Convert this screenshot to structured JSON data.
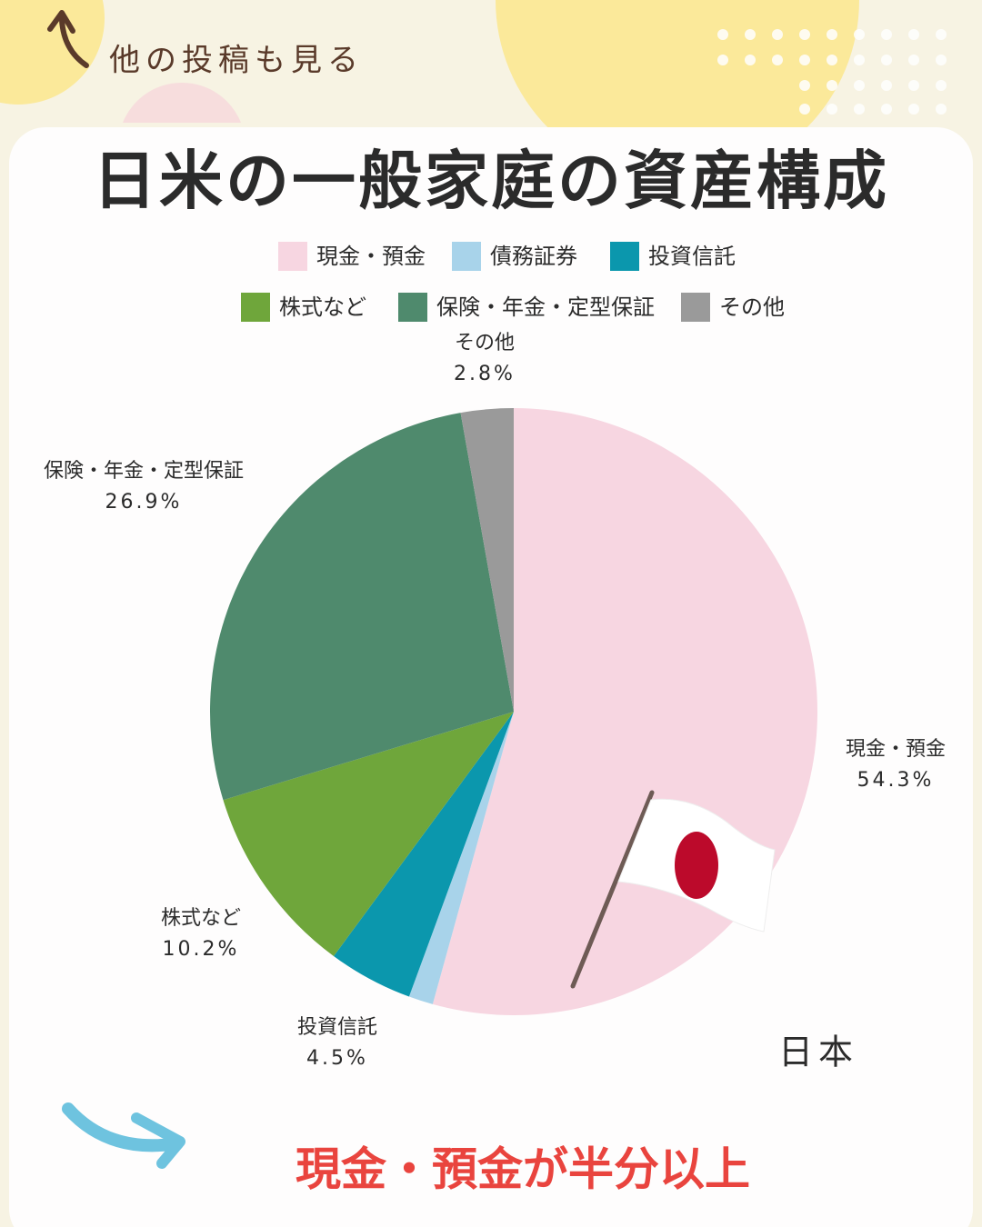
{
  "header": {
    "link": "他の投稿も見る"
  },
  "chart_data": {
    "type": "pie",
    "title": "日米の一般家庭の資産構成",
    "categories": [
      "現金・預金",
      "債務証券",
      "投資信託",
      "株式など",
      "保険・年金・定型保証",
      "その他"
    ],
    "values": [
      54.3,
      1.3,
      4.5,
      10.2,
      26.9,
      2.8
    ],
    "value_labels": [
      "54.3%",
      null,
      "4.5%",
      "10.2%",
      "26.9%",
      "2.8%"
    ],
    "colors": [
      "#f7d6e1",
      "#a8d3ea",
      "#0b97ad",
      "#6fa63b",
      "#4f8a6d",
      "#9a9a9a"
    ],
    "annotation": "日本"
  },
  "conclusion": "現金・預金が半分以上"
}
